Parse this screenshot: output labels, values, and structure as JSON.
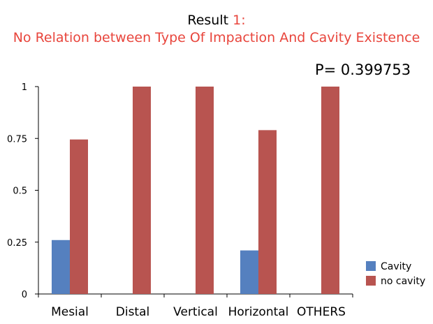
{
  "title": {
    "prefix": "Result ",
    "number": "1:",
    "subtitle": "No Relation between Type Of Impaction And Cavity Existence",
    "accent_color": "#e8453c"
  },
  "annotation": "P= 0.399753",
  "chart_data": {
    "type": "bar",
    "categories": [
      "Mesial",
      "Distal",
      "Vertical",
      "Horizontal",
      "OTHERS"
    ],
    "series": [
      {
        "name": "Cavity",
        "values": [
          0.26,
          0,
          0,
          0.21,
          0
        ],
        "color": "#5580bf"
      },
      {
        "name": "no cavity",
        "values": [
          0.745,
          1,
          1,
          0.79,
          1
        ],
        "color": "#b85450"
      }
    ],
    "ylim": [
      0,
      1
    ],
    "yticks": [
      0,
      0.25,
      0.5,
      0.75,
      1
    ],
    "ytick_labels": [
      "0",
      "0.25",
      "0.5",
      "0.75",
      "1"
    ],
    "grid": false,
    "legend_position": "right"
  }
}
